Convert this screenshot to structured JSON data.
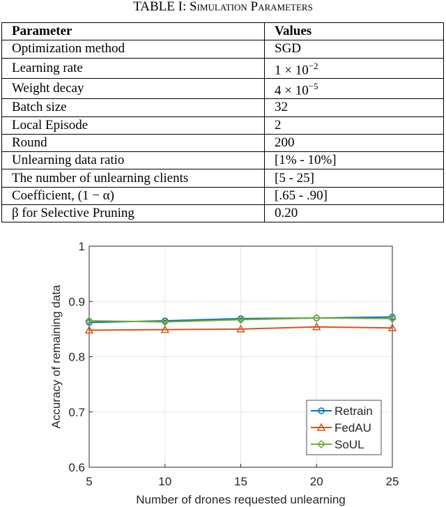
{
  "table": {
    "title": "TABLE I: Simulation Parameters",
    "header": [
      "Parameter",
      "Values"
    ],
    "rows": [
      [
        "Optimization method",
        "SGD"
      ],
      [
        "Learning rate",
        {
          "text": "1 × 10",
          "sup": "−2"
        }
      ],
      [
        "Weight decay",
        {
          "text": "4 × 10",
          "sup": "−5"
        }
      ],
      [
        "Batch size",
        "32"
      ],
      [
        "Local Episode",
        "2"
      ],
      [
        "Round",
        "200"
      ],
      [
        "Unlearning data ratio",
        "[1% - 10%]"
      ],
      [
        "The number of unlearning clients",
        "[5 - 25]"
      ],
      [
        "Coefficient, (1 − α)",
        "[.65 - .90]"
      ],
      [
        "β for Selective Pruning",
        "0.20"
      ]
    ]
  },
  "chart_data": {
    "type": "line",
    "x_label": "Number of drones requested unlearning",
    "y_label": "Accuracy of remaining data",
    "x": [
      5,
      10,
      15,
      20,
      25
    ],
    "xlim": [
      5,
      25
    ],
    "xticks": [
      5,
      10,
      15,
      20,
      25
    ],
    "ylim": [
      0.6,
      1
    ],
    "yticks": [
      0.6,
      0.7,
      0.8,
      0.9,
      1
    ],
    "grid": true,
    "legend": "lower right",
    "series": [
      {
        "name": "Retrain",
        "color": "#0072bd",
        "marker": "circle",
        "values": [
          0.862,
          0.865,
          0.869,
          0.87,
          0.872
        ]
      },
      {
        "name": "FedAU",
        "color": "#d95319",
        "marker": "triangle",
        "values": [
          0.848,
          0.849,
          0.85,
          0.854,
          0.852
        ]
      },
      {
        "name": "SoUL",
        "color": "#77ac30",
        "marker": "diamond",
        "values": [
          0.865,
          0.863,
          0.867,
          0.87,
          0.869
        ]
      }
    ]
  }
}
